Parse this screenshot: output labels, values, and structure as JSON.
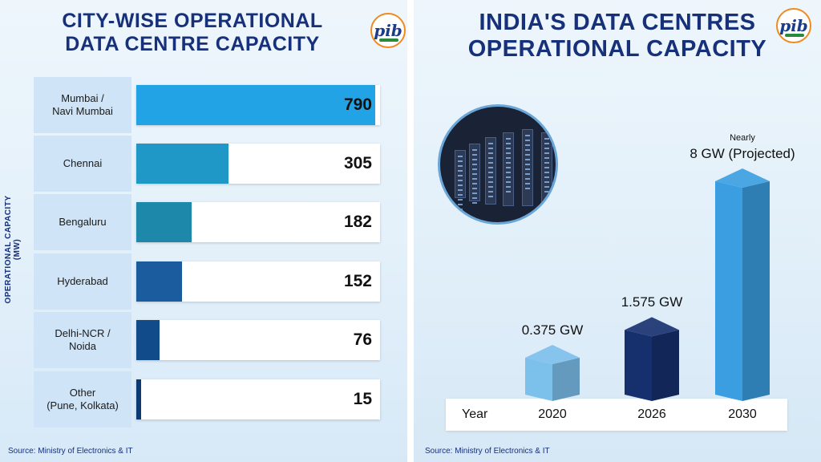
{
  "left": {
    "title_line1": "CITY-WISE OPERATIONAL",
    "title_line2": "DATA CENTRE CAPACITY",
    "source": "Source: Ministry of Electronics & IT"
  },
  "right": {
    "title_line1": "INDIA'S DATA CENTRES",
    "title_line2": "OPERATIONAL CAPACITY",
    "source": "Source: Ministry of Electronics & IT",
    "year_label": "Year"
  },
  "logo_text": "pib",
  "chart_data": [
    {
      "type": "bar",
      "orientation": "horizontal",
      "title": "CITY-WISE OPERATIONAL DATA CENTRE CAPACITY",
      "ylabel": "OPERATIONAL CAPACITY (MW)",
      "xlim": [
        0,
        790
      ],
      "categories": [
        "Mumbai /\nNavi Mumbai",
        "Chennai",
        "Bengaluru",
        "Hyderabad",
        "Delhi-NCR /\nNoida",
        "Other\n(Pune, Kolkata)"
      ],
      "values": [
        790,
        305,
        182,
        152,
        76,
        15
      ],
      "value_labels": [
        "790",
        "305",
        "182",
        "152",
        "76",
        "15"
      ],
      "colors": [
        "#21a3e6",
        "#1f97c7",
        "#1d88aa",
        "#1a5c9e",
        "#124b8a",
        "#0d3a73"
      ]
    },
    {
      "type": "bar",
      "title": "INDIA'S DATA CENTRES OPERATIONAL CAPACITY",
      "xlabel": "Year",
      "categories": [
        "2020",
        "2026",
        "2030"
      ],
      "values": [
        0.375,
        1.575,
        8
      ],
      "value_labels": [
        "0.375 GW",
        "1.575 GW",
        "8 GW (Projected)"
      ],
      "notes": [
        "",
        "",
        "Nearly"
      ],
      "ylim": [
        0,
        8
      ],
      "colors": [
        "#7cc0ec",
        "#16306e",
        "#3a9ee0"
      ]
    }
  ]
}
